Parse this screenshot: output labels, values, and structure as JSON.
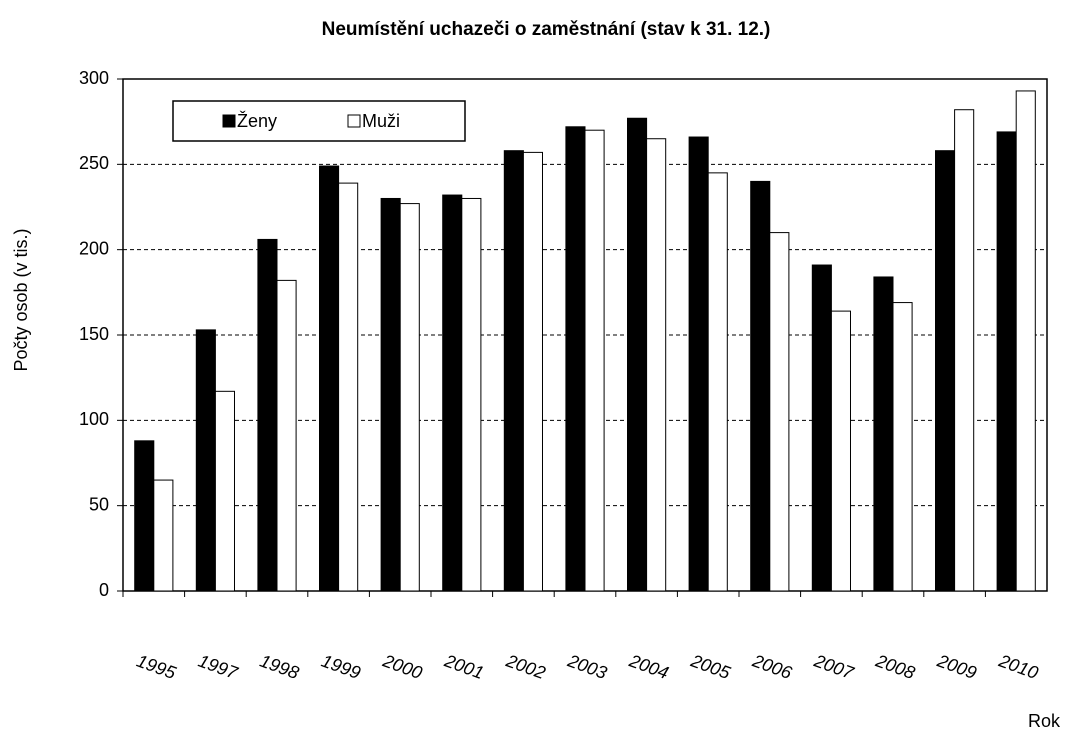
{
  "chart_data": {
    "type": "bar",
    "title": "Neumístění uchazeči o zaměstnání (stav k 31. 12.)",
    "y_label": "Počty osob (v tis.)",
    "x_label": "Rok",
    "categories": [
      "1995",
      "1997",
      "1998",
      "1999",
      "2000",
      "2001",
      "2002",
      "2003",
      "2004",
      "2005",
      "2006",
      "2007",
      "2008",
      "2009",
      "2010"
    ],
    "series": [
      {
        "name": "Ženy",
        "color": "#000000",
        "values": [
          88,
          153,
          206,
          249,
          230,
          232,
          258,
          272,
          277,
          266,
          240,
          191,
          184,
          258,
          269
        ]
      },
      {
        "name": "Muži",
        "color": "#ffffff",
        "values": [
          65,
          117,
          182,
          239,
          227,
          230,
          257,
          270,
          265,
          245,
          210,
          164,
          169,
          282,
          293
        ]
      }
    ],
    "ylim": [
      0,
      300
    ],
    "yticks": [
      0,
      50,
      100,
      150,
      200,
      250,
      300
    ],
    "grid": true,
    "legend": "top-left"
  }
}
